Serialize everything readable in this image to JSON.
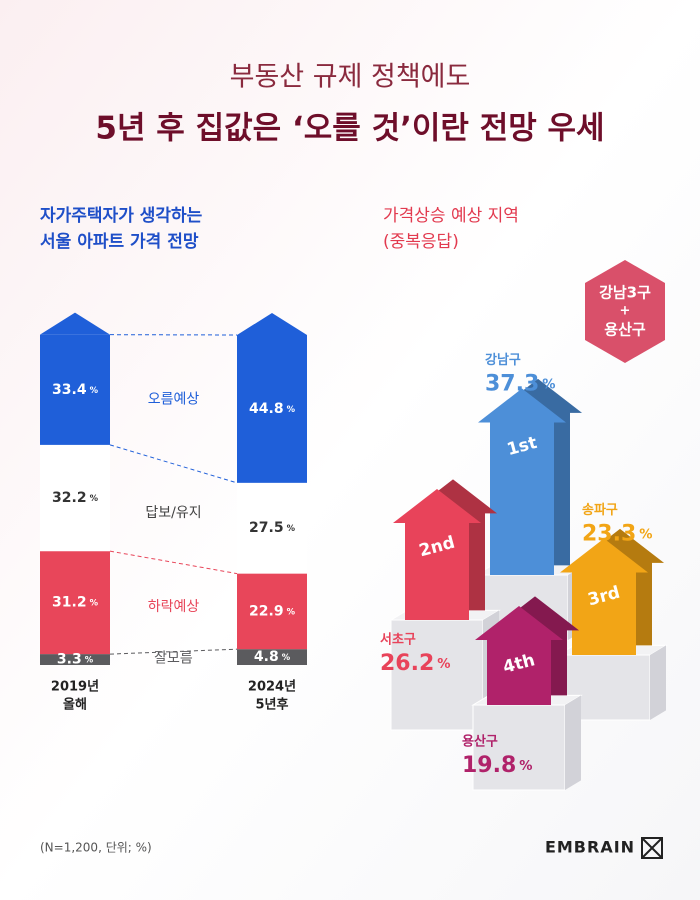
{
  "header": {
    "subtitle": "부동산 규제 정책에도",
    "title": "5년 후 집값은 ‘오를 것’이란 전망 우세"
  },
  "chart_data": [
    {
      "type": "stacked-bar",
      "title": [
        "자가주택자가  생각하는",
        "서울 아파트 가격 전망"
      ],
      "unit": "%",
      "categories": [
        "2019년",
        "2024년"
      ],
      "category_notes": [
        "올해",
        "5년후"
      ],
      "series": [
        {
          "name": "잘모름",
          "color": "#5b5b5e",
          "values": [
            3.3,
            4.8
          ]
        },
        {
          "name": "하락예상",
          "color": "#e8465a",
          "values": [
            31.2,
            22.9
          ]
        },
        {
          "name": "답보/유지",
          "color": "#ffffff",
          "values": [
            32.2,
            27.5
          ]
        },
        {
          "name": "오름예상",
          "color": "#1f5fd9",
          "values": [
            33.4,
            44.8
          ]
        }
      ]
    },
    {
      "type": "arrow",
      "title": "가격상승 예상 지역",
      "subtitle": "(중복응답)",
      "unit": "%",
      "annotation": [
        "강남3구",
        "+",
        "용산구"
      ],
      "categories": [
        "강남구",
        "서초구",
        "송파구",
        "용산구"
      ],
      "ranks": [
        "1st",
        "2nd",
        "3rd",
        "4th"
      ],
      "values": [
        37.3,
        26.2,
        23.3,
        19.8
      ],
      "colors": [
        "#4d8fd8",
        "#e8435a",
        "#f2a516",
        "#b0226a"
      ]
    }
  ],
  "footer": {
    "note": "(N=1,200, 단위; %)",
    "brand": "EMBRAIN"
  }
}
